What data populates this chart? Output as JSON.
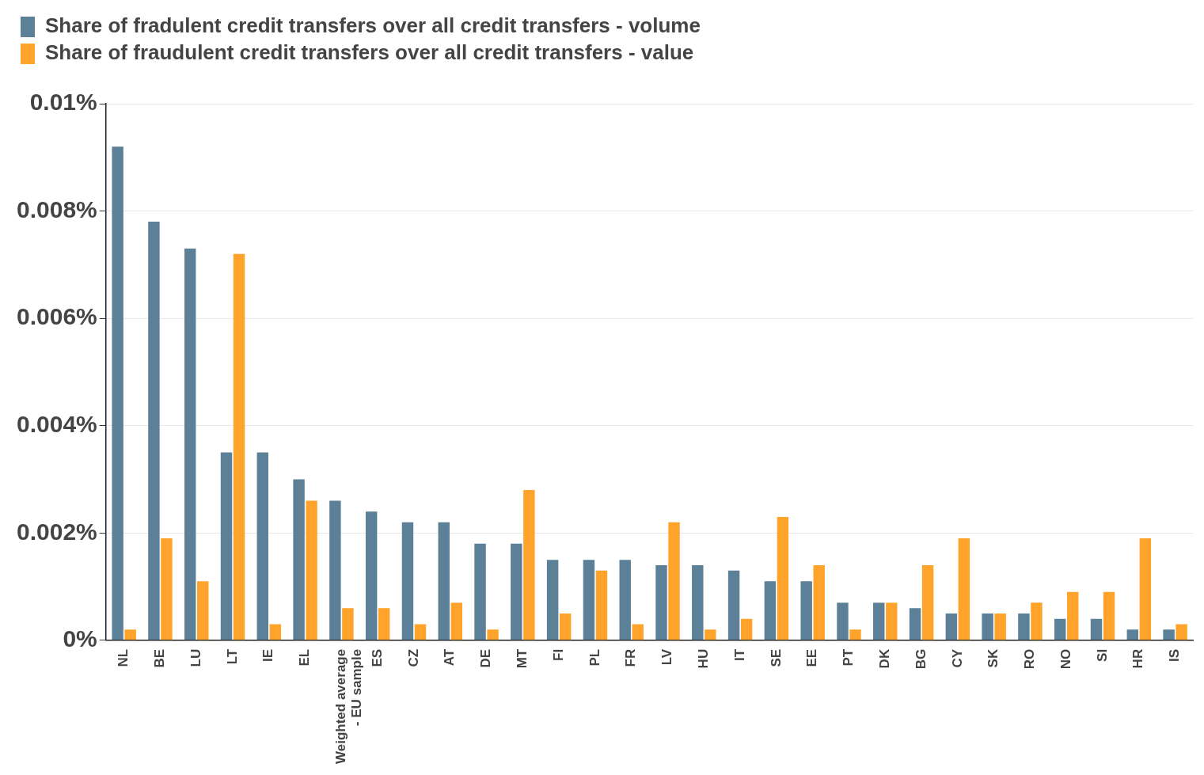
{
  "chart_data": {
    "type": "bar",
    "categories": [
      "NL",
      "BE",
      "LU",
      "LT",
      "IE",
      "EL",
      "Weighted average - EU sample",
      "ES",
      "CZ",
      "AT",
      "DE",
      "MT",
      "FI",
      "PL",
      "FR",
      "LV",
      "HU",
      "IT",
      "SE",
      "EE",
      "PT",
      "DK",
      "BG",
      "CY",
      "SK",
      "RO",
      "NO",
      "SI",
      "HR",
      "IS"
    ],
    "series": [
      {
        "name": "Share of fradulent credit transfers over all credit transfers - volume",
        "color": "#5b8098",
        "values": [
          0.0092,
          0.0078,
          0.0073,
          0.0035,
          0.0035,
          0.003,
          0.0026,
          0.0024,
          0.0022,
          0.0022,
          0.0018,
          0.0018,
          0.0015,
          0.0015,
          0.0015,
          0.0014,
          0.0014,
          0.0013,
          0.0011,
          0.0011,
          0.0007,
          0.0007,
          0.0006,
          0.0005,
          0.0005,
          0.0005,
          0.0004,
          0.0004,
          0.0002,
          0.0002
        ]
      },
      {
        "name": "Share of fraudulent credit transfers over all credit transfers - value",
        "color": "#ffa32a",
        "values": [
          0.0002,
          0.0019,
          0.0011,
          0.0072,
          0.0003,
          0.0026,
          0.0006,
          0.0006,
          0.0003,
          0.0007,
          0.0002,
          0.0028,
          0.0005,
          0.0013,
          0.0003,
          0.0022,
          0.0002,
          0.0004,
          0.0023,
          0.0014,
          0.0002,
          0.0007,
          0.0014,
          0.0019,
          0.0005,
          0.0007,
          0.0009,
          0.0009,
          0.0019,
          0.0003
        ]
      }
    ],
    "ylim": [
      0,
      0.01
    ],
    "yticks": [
      {
        "value": 0,
        "label": "0%"
      },
      {
        "value": 0.002,
        "label": "0.002%"
      },
      {
        "value": 0.004,
        "label": "0.004%"
      },
      {
        "value": 0.006,
        "label": "0.006%"
      },
      {
        "value": 0.008,
        "label": "0.008%"
      },
      {
        "value": 0.01,
        "label": "0.01%"
      }
    ],
    "grid": "y",
    "legend": "top left"
  }
}
